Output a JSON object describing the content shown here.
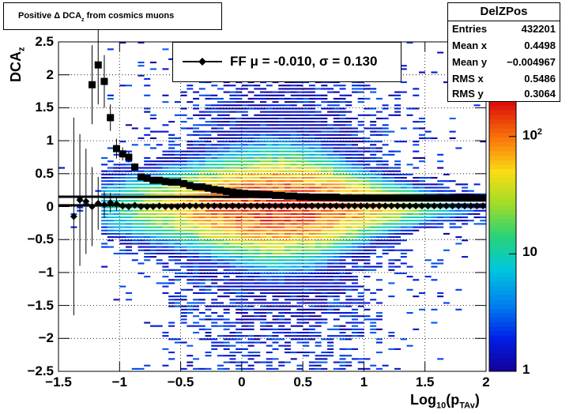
{
  "title": "Positive Δ DCA",
  "title_sub": "z",
  "title_suffix": " from cosmics muons",
  "stats": {
    "name": "DelZPos",
    "rows": [
      {
        "key": "Entries",
        "value": "432201"
      },
      {
        "key": "Mean x",
        "value": "0.4498"
      },
      {
        "key": "Mean y",
        "value": "−0.004967"
      },
      {
        "key": "RMS x",
        "value": "0.5486"
      },
      {
        "key": "RMS y",
        "value": "0.3064"
      }
    ]
  },
  "legend": {
    "label": "FF μ = -0.010, σ =   0.130"
  },
  "chart_data": {
    "type": "heatmap",
    "xlabel": "Log",
    "xlabel_sub": "10",
    "xlabel_mid": "(p",
    "xlabel_sub2": "TAv",
    "xlabel_end": ")",
    "ylabel": "DCA",
    "ylabel_sub": "z",
    "xlim": [
      -1.5,
      2
    ],
    "ylim": [
      -2.5,
      2.5
    ],
    "x_ticks": [
      "−1.5",
      "−1",
      "−0.5",
      "0",
      "0.5",
      "1",
      "1.5",
      "2"
    ],
    "x_tick_values": [
      -1.5,
      -1,
      -0.5,
      0,
      0.5,
      1,
      1.5,
      2
    ],
    "y_ticks": [
      "−2.5",
      "−2",
      "−1.5",
      "−1",
      "−0.5",
      "0",
      "0.5",
      "1",
      "1.5",
      "2",
      "2.5"
    ],
    "y_tick_values": [
      -2.5,
      -2,
      -1.5,
      -1,
      -0.5,
      0,
      0.5,
      1,
      1.5,
      2,
      2.5
    ],
    "z_scale": "log",
    "z_range": [
      1,
      200
    ],
    "z_ticks": [
      {
        "value": 1,
        "label": "1"
      },
      {
        "value": 10,
        "label": "10"
      },
      {
        "value": 100,
        "label": "10",
        "sup": "2"
      }
    ],
    "grid": true,
    "density_model": {
      "center_y": -0.005,
      "peak_x": 0.3,
      "peak_count": 200
    },
    "series": [
      {
        "name": "FF",
        "marker": "diamond",
        "x": [
          -1.375,
          -1.325,
          -1.275,
          -1.225,
          -1.175,
          -1.125,
          -1.075,
          -1.025,
          -0.975,
          -0.925,
          -0.875,
          -0.825,
          -0.775,
          -0.725,
          -0.675,
          -0.625,
          -0.575,
          -0.525,
          -0.475,
          -0.425,
          -0.375,
          -0.325,
          -0.275,
          -0.225,
          -0.175,
          -0.125,
          -0.075,
          -0.025,
          0.025,
          0.075,
          0.125,
          0.175,
          0.225,
          0.275,
          0.325,
          0.375,
          0.425,
          0.475,
          0.525,
          0.575,
          0.625,
          0.675,
          0.725,
          0.775,
          0.825,
          0.875,
          0.925,
          0.975,
          1.025,
          1.075,
          1.125,
          1.175,
          1.225,
          1.275,
          1.325,
          1.375,
          1.425,
          1.475,
          1.525,
          1.575,
          1.625,
          1.675,
          1.725,
          1.775,
          1.825,
          1.875,
          1.925,
          1.975
        ],
        "y": [
          -0.15,
          0.1,
          0.08,
          0.0,
          0.05,
          0.03,
          0.06,
          0.04,
          0.01,
          0.0,
          0.02,
          0.0,
          0.0,
          0.0,
          0.01,
          0.0,
          0.0,
          0.0,
          0.01,
          0.01,
          0.01,
          0.01,
          0.01,
          0.01,
          0.01,
          0.01,
          0.01,
          0.01,
          0.01,
          0.01,
          0.01,
          0.01,
          0.01,
          0.01,
          0.01,
          0.01,
          0.01,
          0.01,
          0.01,
          0.01,
          0.01,
          0.01,
          0.01,
          0.01,
          0.01,
          0.01,
          0.01,
          0.01,
          0.01,
          0.01,
          0.01,
          0.01,
          0.01,
          0.01,
          0.01,
          0.01,
          0.01,
          0.01,
          0.01,
          0.01,
          0.01,
          0.01,
          0.01,
          0.01,
          0.01,
          0.01,
          0.01,
          0.01
        ],
        "yerr": [
          1.5,
          1.0,
          0.8,
          0.6,
          0.4,
          0.2,
          0.15,
          0.1,
          0.06,
          0.05,
          0.04,
          0.03,
          0.02,
          0.02,
          0.02,
          0.02,
          0.02,
          0.02,
          0.01,
          0.01,
          0.01,
          0.01,
          0.01,
          0.01,
          0.01,
          0.01,
          0.01,
          0.01,
          0.01,
          0.01,
          0.01,
          0.01,
          0.01,
          0.01,
          0.01,
          0.01,
          0.01,
          0.01,
          0.01,
          0.01,
          0.01,
          0.01,
          0.01,
          0.01,
          0.01,
          0.01,
          0.01,
          0.01,
          0.01,
          0.01,
          0.01,
          0.01,
          0.01,
          0.01,
          0.01,
          0.01,
          0.01,
          0.01,
          0.01,
          0.01,
          0.01,
          0.01,
          0.01,
          0.01,
          0.01,
          0.01,
          0.01,
          0.01
        ]
      },
      {
        "marker": "square",
        "x": [
          -1.375,
          -1.325,
          -1.275,
          -1.225,
          -1.175,
          -1.125,
          -1.075,
          -1.025,
          -0.975,
          -0.925,
          -0.875,
          -0.825,
          -0.775,
          -0.725,
          -0.675,
          -0.625,
          -0.575,
          -0.525,
          -0.475,
          -0.425,
          -0.375,
          -0.325,
          -0.275,
          -0.225,
          -0.175,
          -0.125,
          -0.075,
          -0.025,
          0.025,
          0.075,
          0.125,
          0.175,
          0.225,
          0.275,
          0.325,
          0.375,
          0.425,
          0.475,
          0.525,
          0.575,
          0.625,
          0.675,
          0.725,
          0.775,
          0.825,
          0.875,
          0.925,
          0.975,
          1.025,
          1.075,
          1.125,
          1.175,
          1.225,
          1.275,
          1.325,
          1.375,
          1.425,
          1.475,
          1.525,
          1.575,
          1.625,
          1.675,
          1.725,
          1.775,
          1.825,
          1.875,
          1.925,
          1.975
        ],
        "y": [
          null,
          null,
          null,
          1.85,
          2.15,
          1.9,
          1.35,
          0.88,
          0.8,
          0.75,
          0.6,
          0.45,
          0.43,
          0.4,
          0.4,
          0.38,
          0.37,
          0.37,
          0.35,
          0.32,
          0.3,
          0.3,
          0.28,
          0.26,
          0.25,
          0.23,
          0.22,
          0.21,
          0.2,
          0.19,
          0.19,
          0.18,
          0.18,
          0.17,
          0.17,
          0.16,
          0.16,
          0.15,
          0.15,
          0.14,
          0.14,
          0.14,
          0.14,
          0.14,
          0.13,
          0.13,
          0.13,
          0.13,
          0.13,
          0.13,
          0.13,
          0.13,
          0.13,
          0.13,
          0.13,
          0.13,
          0.13,
          0.13,
          0.13,
          0.13,
          0.13,
          0.13,
          0.13,
          0.13,
          0.13,
          0.13,
          0.13,
          0.13
        ],
        "yerr": [
          null,
          null,
          null,
          0.6,
          0.6,
          0.4,
          0.2,
          0.15,
          0.1,
          0.08,
          0.06,
          0.04,
          0.03,
          0.02,
          0.02,
          0.02,
          0.02,
          0.02,
          0.01,
          0.01,
          0.01,
          0.01,
          0.01,
          0.01,
          0.01,
          0.01,
          0.01,
          0.01,
          0.01,
          0.01,
          0.01,
          0.01,
          0.01,
          0.01,
          0.01,
          0.01,
          0.01,
          0.01,
          0.01,
          0.01,
          0.01,
          0.01,
          0.01,
          0.01,
          0.01,
          0.01,
          0.01,
          0.01,
          0.01,
          0.01,
          0.01,
          0.01,
          0.01,
          0.01,
          0.01,
          0.01,
          0.01,
          0.01,
          0.01,
          0.01,
          0.01,
          0.01,
          0.01,
          0.01,
          0.01,
          0.01,
          0.01,
          0.01
        ]
      }
    ],
    "fit_lines": [
      {
        "y_at_xmin": 0.15,
        "y_at_xmax": 0.15
      },
      {
        "y_at_xmin": 0.02,
        "y_at_xmax": 0.02
      }
    ]
  }
}
